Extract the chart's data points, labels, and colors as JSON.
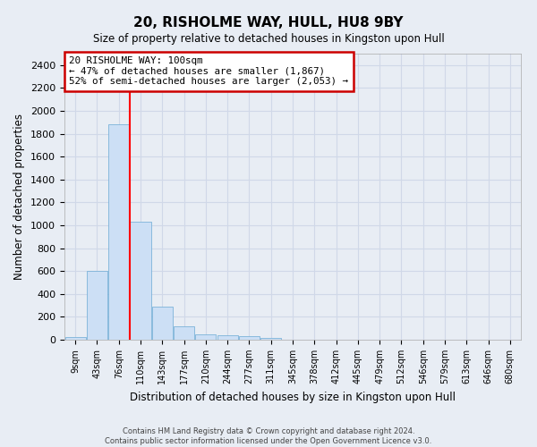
{
  "title": "20, RISHOLME WAY, HULL, HU8 9BY",
  "subtitle": "Size of property relative to detached houses in Kingston upon Hull",
  "xlabel": "Distribution of detached houses by size in Kingston upon Hull",
  "ylabel": "Number of detached properties",
  "footer_line1": "Contains HM Land Registry data © Crown copyright and database right 2024.",
  "footer_line2": "Contains public sector information licensed under the Open Government Licence v3.0.",
  "categories": [
    "9sqm",
    "43sqm",
    "76sqm",
    "110sqm",
    "143sqm",
    "177sqm",
    "210sqm",
    "244sqm",
    "277sqm",
    "311sqm",
    "345sqm",
    "378sqm",
    "412sqm",
    "445sqm",
    "479sqm",
    "512sqm",
    "546sqm",
    "579sqm",
    "613sqm",
    "646sqm",
    "680sqm"
  ],
  "values": [
    20,
    600,
    1880,
    1035,
    290,
    120,
    50,
    40,
    28,
    18,
    0,
    0,
    0,
    0,
    0,
    0,
    0,
    0,
    0,
    0,
    0
  ],
  "bar_color": "#ccdff5",
  "bar_edge_color": "#6aaad4",
  "ylim": [
    0,
    2500
  ],
  "yticks": [
    0,
    200,
    400,
    600,
    800,
    1000,
    1200,
    1400,
    1600,
    1800,
    2000,
    2200,
    2400
  ],
  "property_label": "20 RISHOLME WAY: 100sqm",
  "annotation_line1": "← 47% of detached houses are smaller (1,867)",
  "annotation_line2": "52% of semi-detached houses are larger (2,053) →",
  "vline_x_index": 2.5,
  "annotation_box_color": "#ffffff",
  "annotation_border_color": "#cc0000",
  "grid_color": "#d0d8e8",
  "background_color": "#e8edf4",
  "axes_background": "#e8edf4"
}
